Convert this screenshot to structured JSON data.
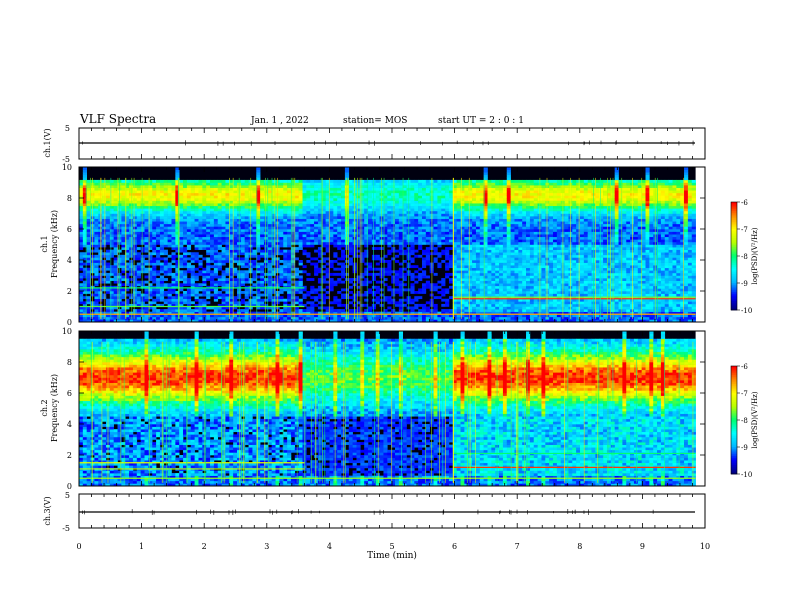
{
  "header": {
    "title": "VLF Spectra",
    "date": "Jan. 1 , 2022",
    "station": "station= MOS",
    "start_ut": "start UT =  2 : 0 : 1"
  },
  "chart_data": [
    {
      "type": "line",
      "id": "ch1-voltage",
      "ylabel": "ch.1(V)",
      "yticks": [
        "5",
        "-5"
      ],
      "ylim": [
        -5,
        5
      ],
      "xlim": [
        0,
        10
      ],
      "series": [
        {
          "x": [
            0,
            9.85
          ],
          "values": [
            0,
            0
          ]
        }
      ]
    },
    {
      "type": "heatmap",
      "id": "ch1-spectrogram",
      "ylabel": "ch.1\nFrequency (kHz)",
      "yticks": [
        "0",
        "2",
        "4",
        "6",
        "8",
        "10"
      ],
      "ylim": [
        0,
        10
      ],
      "xlim": [
        0,
        10
      ],
      "data_xmax": 9.85,
      "colorbar": {
        "label": "log(PSD)(V²/Hz)",
        "ticks": [
          "-6",
          "-7",
          "-8",
          "-9",
          "-10"
        ],
        "range": [
          -10,
          -6
        ]
      }
    },
    {
      "type": "heatmap",
      "id": "ch2-spectrogram",
      "ylabel": "ch.2\nFrequency (kHz)",
      "yticks": [
        "0",
        "2",
        "4",
        "6",
        "8",
        "10"
      ],
      "ylim": [
        0,
        10
      ],
      "xlim": [
        0,
        10
      ],
      "data_xmax": 9.85,
      "colorbar": {
        "label": "log(PSD)(V²/Hz)",
        "ticks": [
          "-6",
          "-7",
          "-8",
          "-9",
          "-10"
        ],
        "range": [
          -10,
          -6
        ]
      }
    },
    {
      "type": "line",
      "id": "ch3-voltage",
      "ylabel": "ch.3(V)",
      "yticks": [
        "5",
        "-5"
      ],
      "ylim": [
        -5,
        5
      ],
      "xlim": [
        0,
        10
      ],
      "series": [
        {
          "x": [
            0,
            9.85
          ],
          "values": [
            0,
            0
          ]
        }
      ]
    }
  ],
  "x_axis": {
    "label": "Time (min)",
    "ticks": [
      "0",
      "1",
      "2",
      "3",
      "4",
      "5",
      "6",
      "7",
      "8",
      "9",
      "10"
    ]
  },
  "colors": {
    "colormap": [
      "#00007f",
      "#0000ff",
      "#00b7ff",
      "#00ffff",
      "#00ff6f",
      "#b7ff00",
      "#ffff00",
      "#ff8c00",
      "#ff0000",
      "#ffffff"
    ],
    "background_low": "#000010"
  }
}
